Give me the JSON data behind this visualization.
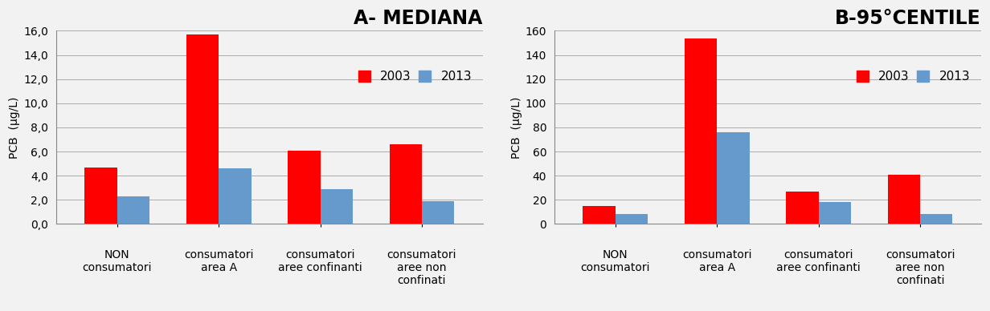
{
  "chart_A": {
    "title": "A- MEDIANA",
    "ylabel": "PCB  (μg/L)",
    "ylim": [
      0,
      16.0
    ],
    "yticks": [
      0.0,
      2.0,
      4.0,
      6.0,
      8.0,
      10.0,
      12.0,
      14.0,
      16.0
    ],
    "ytick_labels": [
      "0,0",
      "2,0",
      "4,0",
      "6,0",
      "8,0",
      "10,0",
      "12,0",
      "14,0",
      "16,0"
    ],
    "values_2003": [
      4.7,
      15.7,
      6.1,
      6.6
    ],
    "values_2013": [
      2.3,
      4.6,
      2.9,
      1.9
    ]
  },
  "chart_B": {
    "title": "B-95°CENTILE",
    "ylabel": "PCB  (μg/L)",
    "ylim": [
      0,
      160
    ],
    "yticks": [
      0,
      20,
      40,
      60,
      80,
      100,
      120,
      140,
      160
    ],
    "ytick_labels": [
      "0",
      "20",
      "40",
      "60",
      "80",
      "100",
      "120",
      "140",
      "160"
    ],
    "values_2003": [
      15.0,
      153.5,
      26.5,
      40.5
    ],
    "values_2013": [
      8.0,
      76.0,
      18.0,
      8.5
    ]
  },
  "categories_line1": [
    "NON",
    "consumatori",
    "consumatori",
    "consumatori"
  ],
  "categories_line2": [
    "consumatori",
    "area A",
    "aree confinanti",
    "aree non"
  ],
  "categories_line3": [
    "",
    "",
    "",
    "confinati"
  ],
  "color_2003": "#FF0000",
  "color_2013": "#6699CC",
  "legend_labels": [
    "2003",
    "2013"
  ],
  "bar_width": 0.32,
  "background_color": "#F2F2F2",
  "plot_bg_color": "#F2F2F2",
  "grid_color": "#AAAAAA",
  "title_fontsize": 17,
  "label_fontsize": 10,
  "tick_fontsize": 10,
  "legend_fontsize": 11,
  "xlabel_fontsize": 10
}
